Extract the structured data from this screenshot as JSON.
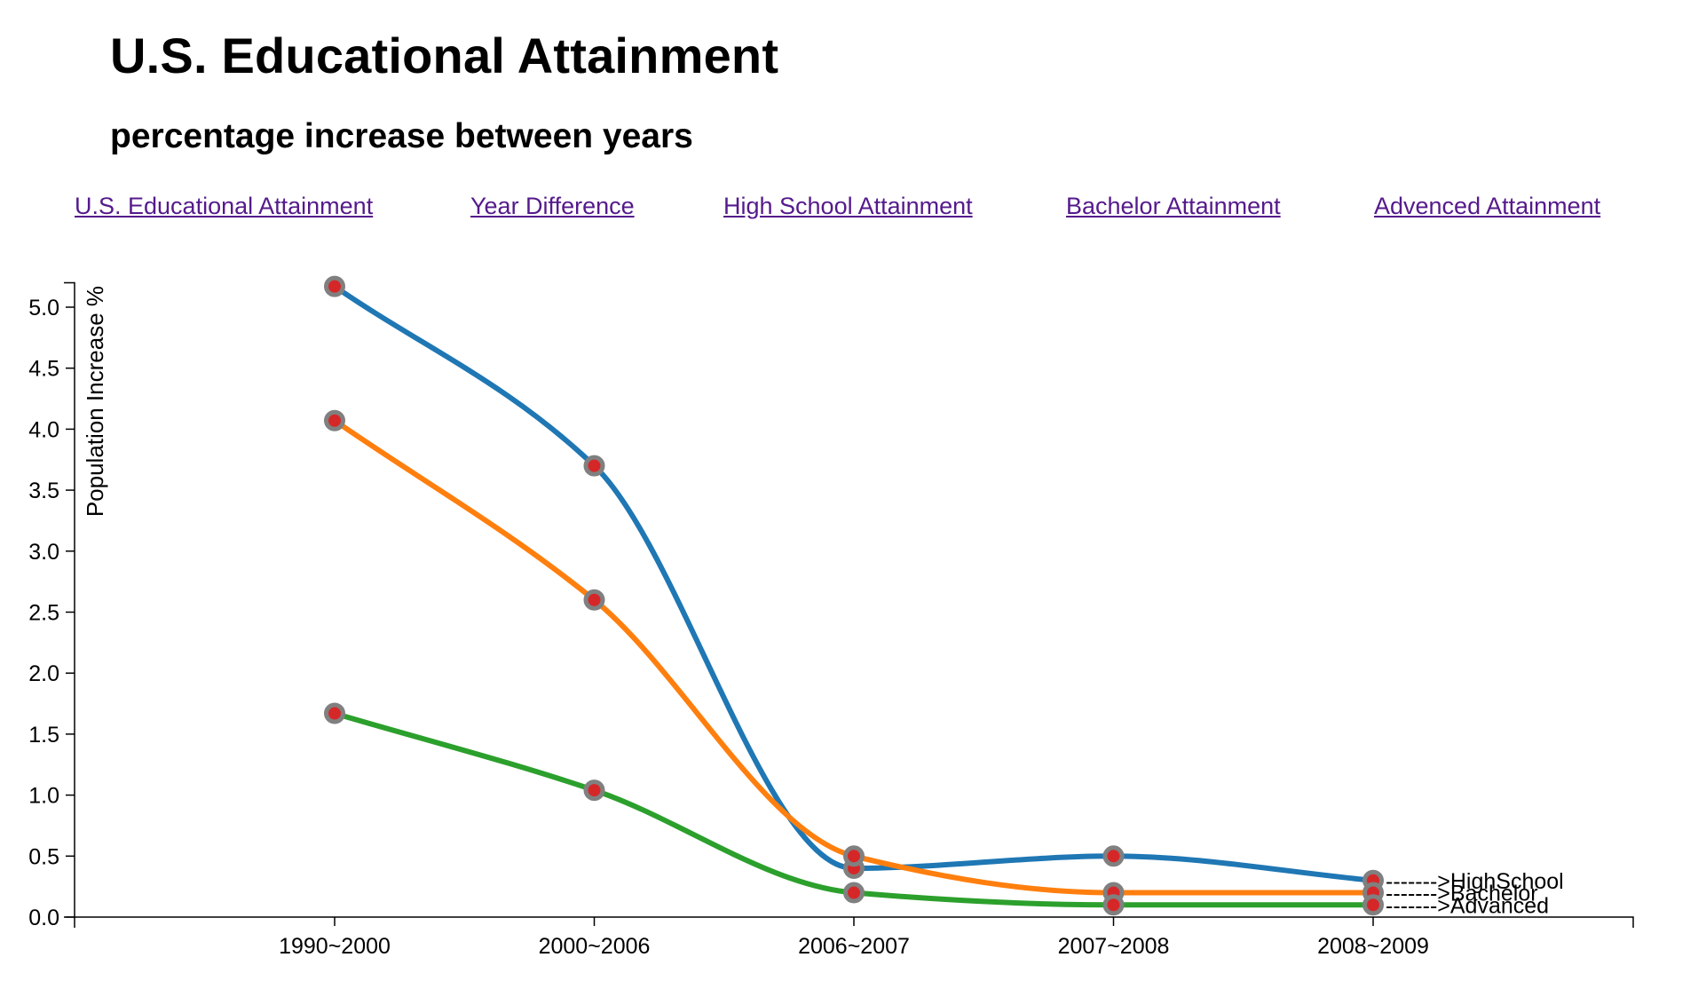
{
  "header": {
    "title": "U.S. Educational Attainment",
    "subtitle": "percentage increase between years"
  },
  "nav": {
    "links": [
      {
        "label": "U.S. Educational Attainment"
      },
      {
        "label": "Year Difference"
      },
      {
        "label": "High School Attainment"
      },
      {
        "label": "Bachelor Attainment"
      },
      {
        "label": "Advenced Attainment"
      }
    ],
    "link_color": "#551a8b"
  },
  "chart_data": {
    "type": "line",
    "ylabel": "Population Increase %",
    "xlabel": "",
    "categories": [
      "1990~2000",
      "2000~2006",
      "2006~2007",
      "2007~2008",
      "2008~2009"
    ],
    "ylim": [
      0,
      5.2
    ],
    "yticks": [
      "0.0",
      "0.5",
      "1.0",
      "1.5",
      "2.0",
      "2.5",
      "3.0",
      "3.5",
      "4.0",
      "4.5",
      "5.0"
    ],
    "grid": false,
    "series": [
      {
        "name": ">HighSchool",
        "color": "#1f77b4",
        "values": [
          5.17,
          3.7,
          0.4,
          0.5,
          0.3
        ]
      },
      {
        "name": ">Bachelor",
        "color": "#ff7f0e",
        "values": [
          4.07,
          2.6,
          0.5,
          0.2,
          0.2
        ]
      },
      {
        "name": ">Advanced",
        "color": "#2ca02c",
        "values": [
          1.67,
          1.04,
          0.2,
          0.1,
          0.1
        ]
      }
    ],
    "marker_fill": "#d62728",
    "marker_stroke": "#808080",
    "series_label_connector": "-------"
  }
}
